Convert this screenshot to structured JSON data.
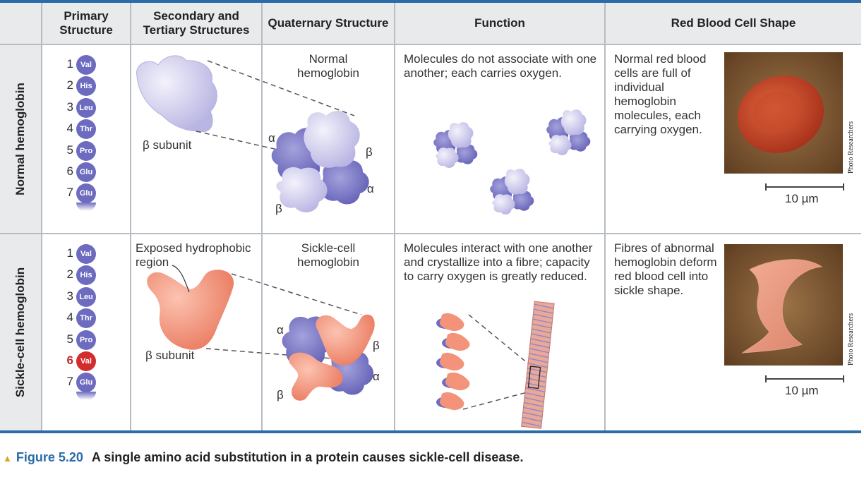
{
  "headers": {
    "primary": "Primary Structure",
    "secondary_tertiary": "Secondary and Tertiary Structures",
    "quaternary": "Quaternary Structure",
    "function": "Function",
    "rbc_shape": "Red Blood Cell Shape"
  },
  "rows": [
    {
      "label": "Normal hemoglobin",
      "amino_acids": [
        {
          "n": "1",
          "aa": "Val"
        },
        {
          "n": "2",
          "aa": "His"
        },
        {
          "n": "3",
          "aa": "Leu"
        },
        {
          "n": "4",
          "aa": "Thr"
        },
        {
          "n": "5",
          "aa": "Pro"
        },
        {
          "n": "6",
          "aa": "Glu"
        },
        {
          "n": "7",
          "aa": "Glu"
        }
      ],
      "subunit_label": "β subunit",
      "quaternary_title": "Normal hemoglobin",
      "alpha": "α",
      "beta": "β",
      "function_text": "Molecules do not associate with one another; each carries oxygen.",
      "rbc_text": "Normal red blood cells are full of individual hemoglobin molecules, each carrying oxygen.",
      "scale": "10 µm",
      "photo_credit": "Photo Researchers"
    },
    {
      "label": "Sickle-cell hemoglobin",
      "amino_acids": [
        {
          "n": "1",
          "aa": "Val"
        },
        {
          "n": "2",
          "aa": "His"
        },
        {
          "n": "3",
          "aa": "Leu"
        },
        {
          "n": "4",
          "aa": "Thr"
        },
        {
          "n": "5",
          "aa": "Pro"
        },
        {
          "n": "6",
          "aa": "Val",
          "mutant": true
        },
        {
          "n": "7",
          "aa": "Glu"
        }
      ],
      "exposed_label": "Exposed hydrophobic region",
      "subunit_label": "β subunit",
      "quaternary_title": "Sickle-cell hemoglobin",
      "alpha": "α",
      "beta": "β",
      "function_text": "Molecules interact with one another and crystallize into a fibre; capacity to carry oxygen is greatly reduced.",
      "rbc_text": "Fibres of abnormal hemoglobin deform red blood cell into sickle shape.",
      "scale": "10 µm",
      "photo_credit": "Photo Researchers"
    }
  ],
  "caption": {
    "figure": "Figure 5.20",
    "text": "A single amino acid substitution in a protein causes sickle-cell disease."
  },
  "colors": {
    "accent_blue": "#2a6ba8",
    "normal_subunit": "#c9c6ea",
    "alpha_subunit": "#7472c2",
    "sickle_subunit": "#f2937a",
    "mutant_red": "#d22c2c"
  }
}
